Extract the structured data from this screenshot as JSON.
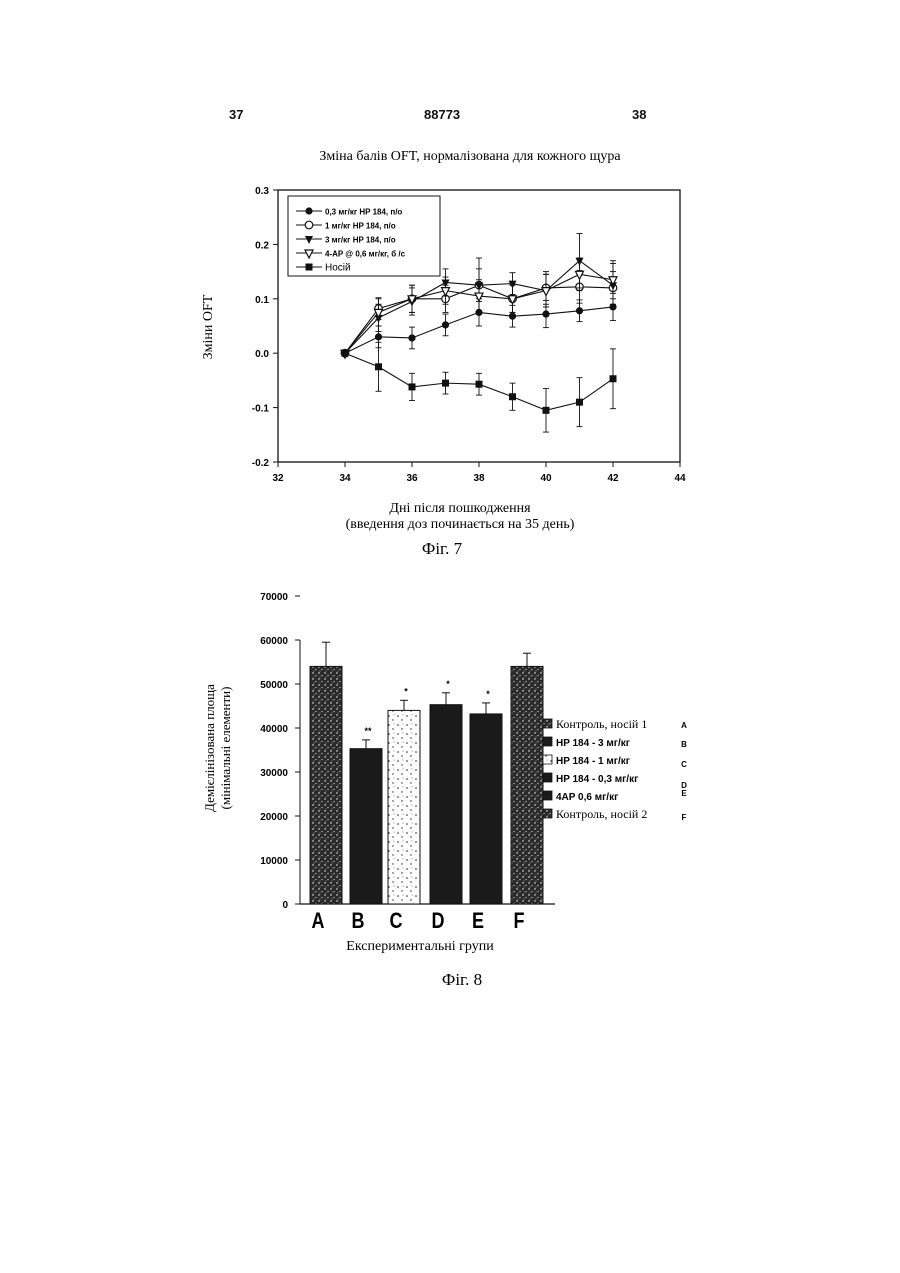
{
  "page": {
    "left_number": "37",
    "center_number": "88773",
    "right_number": "38"
  },
  "figures": [
    {
      "caption": "Фіг. 7",
      "title": "Зміна балів OFT, нормалізована для кожного щура",
      "xlabel_line1": "Дні після пошкодження",
      "xlabel_line2": "(введення доз починається на 35 день)",
      "ylabel": "Зміни OFT"
    },
    {
      "caption": "Фіг. 8",
      "xlabel": "Експериментальні групи",
      "ylabel_line1": "Демієлінізована площа",
      "ylabel_line2": "(мінімальні елементи)"
    }
  ],
  "chart_data": [
    {
      "type": "line",
      "title": "Зміна балів OFT, нормалізована для кожного щура",
      "xlabel": "Дні після пошкодження (введення доз починається на 35 день)",
      "ylabel": "Зміни OFT",
      "xlim": [
        32,
        44
      ],
      "ylim": [
        -0.2,
        0.3
      ],
      "xticks": [
        "32",
        "34",
        "36",
        "38",
        "40",
        "42",
        "44"
      ],
      "yticks": [
        "-0.2",
        "-0.1",
        "0.0",
        "0.1",
        "0.2",
        "0.3"
      ],
      "legend_position": "top-left",
      "x": [
        34,
        35,
        36,
        37,
        38,
        39,
        40,
        41,
        42
      ],
      "series": [
        {
          "name": "0,3 мг/кг HP 184, п/о",
          "marker": "filled-circle",
          "values": [
            0.0,
            0.03,
            0.028,
            0.052,
            0.075,
            0.068,
            0.072,
            0.078,
            0.085
          ],
          "errors": [
            0,
            0.02,
            0.02,
            0.02,
            0.025,
            0.02,
            0.025,
            0.02,
            0.025
          ]
        },
        {
          "name": "1 мг/кг HP 184, п/о",
          "marker": "open-circle",
          "values": [
            0.0,
            0.082,
            0.1,
            0.1,
            0.125,
            0.1,
            0.12,
            0.122,
            0.12
          ],
          "errors": [
            0,
            0.02,
            0.025,
            0.025,
            0.03,
            0.025,
            0.03,
            0.03,
            0.03
          ]
        },
        {
          "name": "3 мг/кг HP 184, п/о",
          "marker": "filled-triangle-down",
          "values": [
            0.0,
            0.065,
            0.095,
            0.13,
            0.125,
            0.128,
            0.115,
            0.17,
            0.125
          ],
          "errors": [
            0,
            0.025,
            0.025,
            0.025,
            0.05,
            0.02,
            0.03,
            0.05,
            0.04
          ]
        },
        {
          "name": "4-AP @ 0,6 мг/кг, б /с",
          "marker": "open-triangle-down",
          "values": [
            0.0,
            0.075,
            0.1,
            0.115,
            0.105,
            0.1,
            0.115,
            0.145,
            0.135
          ],
          "errors": [
            0,
            0.025,
            0.025,
            0.025,
            0.03,
            0.025,
            0.03,
            0.03,
            0.035
          ]
        },
        {
          "name": "Носій",
          "marker": "filled-square",
          "values": [
            0.0,
            -0.025,
            -0.062,
            -0.055,
            -0.057,
            -0.08,
            -0.105,
            -0.09,
            -0.047
          ],
          "errors": [
            0,
            0.045,
            0.025,
            0.02,
            0.02,
            0.025,
            0.04,
            0.045,
            0.055
          ]
        }
      ]
    },
    {
      "type": "bar",
      "xlabel": "Експериментальні групи",
      "ylabel": "Демієлінізована площа (мінімальні елементи)",
      "ylim": [
        0,
        70000
      ],
      "yticks": [
        "0",
        "10000",
        "20000",
        "30000",
        "40000",
        "50000",
        "60000",
        "70000"
      ],
      "categories": [
        "A",
        "B",
        "C",
        "D",
        "E",
        "F"
      ],
      "values": [
        54000,
        35300,
        44000,
        45300,
        43200,
        54000
      ],
      "errors": [
        5500,
        2000,
        2300,
        2700,
        2500,
        3000
      ],
      "significance": [
        "",
        "**",
        "*",
        "*",
        "*",
        ""
      ],
      "fills": [
        "stipple-dark",
        "black",
        "stipple-light",
        "black",
        "black",
        "stipple-dark"
      ],
      "legend_position": "right",
      "legend": [
        {
          "label": "Контроль, носій 1",
          "letter": "A"
        },
        {
          "label": "HP 184 - 3 мг/кг",
          "letter": "B"
        },
        {
          "label": "HP 184 - 1 мг/кг",
          "letter": "C"
        },
        {
          "label": "HP 184 - 0,3 мг/кг",
          "letter": "D"
        },
        {
          "label": "4AP 0,6 мг/кг",
          "letter": "E"
        },
        {
          "label": "Контроль, носій 2",
          "letter": "F"
        }
      ]
    }
  ]
}
